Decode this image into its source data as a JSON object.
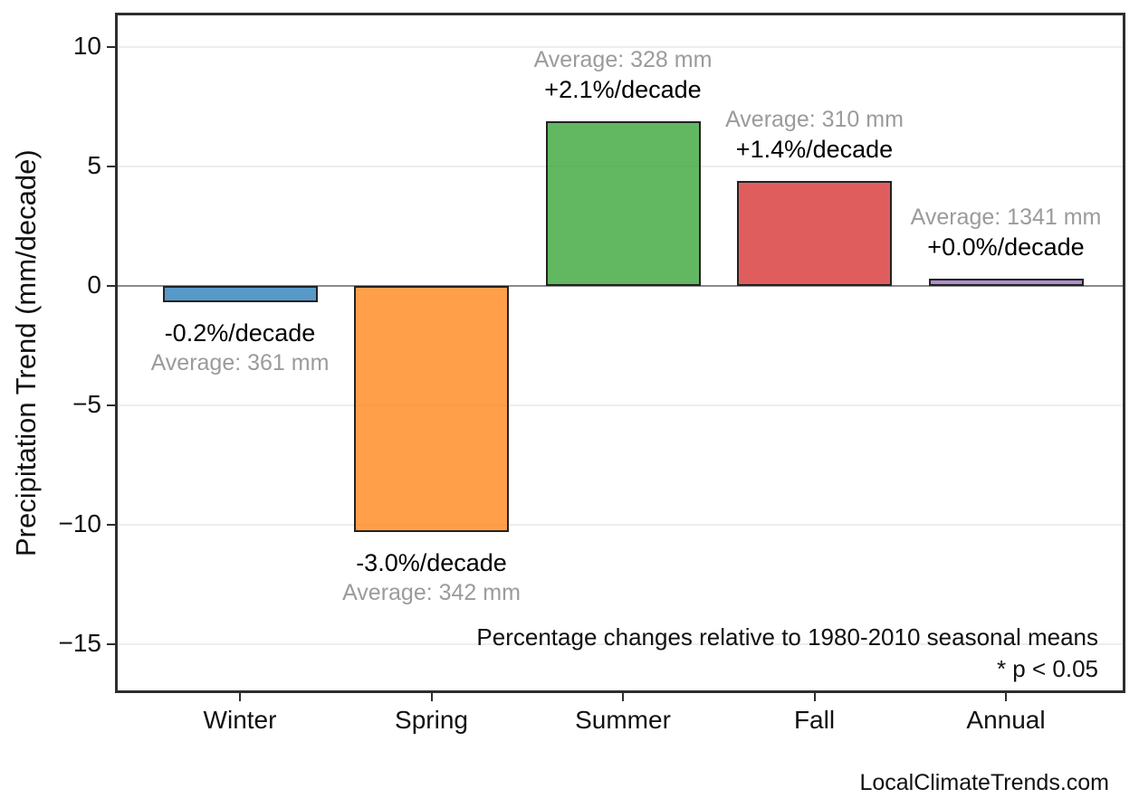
{
  "figure": {
    "ylabel": "Precipitation Trend (mm/decade)",
    "annotation_line1": "Percentage changes relative to 1980-2010 seasonal means",
    "annotation_line2": "* p < 0.05",
    "watermark": "LocalClimateTrends.com"
  },
  "chart_data": {
    "type": "bar",
    "title": "",
    "xlabel": "",
    "ylabel": "Precipitation Trend (mm/decade)",
    "categories": [
      "Winter",
      "Spring",
      "Summer",
      "Fall",
      "Annual"
    ],
    "values": [
      -0.7,
      -10.3,
      6.9,
      4.4,
      0.3
    ],
    "bar_labels_pct": [
      "-0.2%/decade",
      "-3.0%/decade",
      "+2.1%/decade",
      "+1.4%/decade",
      "+0.0%/decade"
    ],
    "bar_labels_avg": [
      "Average: 361 mm",
      "Average: 342 mm",
      "Average: 328 mm",
      "Average: 310 mm",
      "Average: 1341 mm"
    ],
    "annotations": [
      "Percentage changes relative to 1980-2010 seasonal means",
      "* p < 0.05"
    ],
    "yticks": [
      10,
      5,
      0,
      -5,
      -10,
      -15
    ],
    "ytick_labels": [
      "10",
      "5",
      "0",
      "−5",
      "−10",
      "−15"
    ],
    "ylim": [
      -17.05,
      11.44
    ],
    "grid": true,
    "legend": false,
    "colors": {
      "bar_fills": [
        "#1f77b4",
        "#ff7f0e",
        "#2ca02c",
        "#d62728",
        "#9467bd"
      ],
      "bar_alpha": 0.75,
      "bar_edge": "#222222",
      "grid_color": "#ededed",
      "zero_line_color": "#8a8a8a",
      "frame_color": "#2e2e2e",
      "pct_label_color": "#000000",
      "avg_label_color": "#9b9b9b"
    }
  }
}
